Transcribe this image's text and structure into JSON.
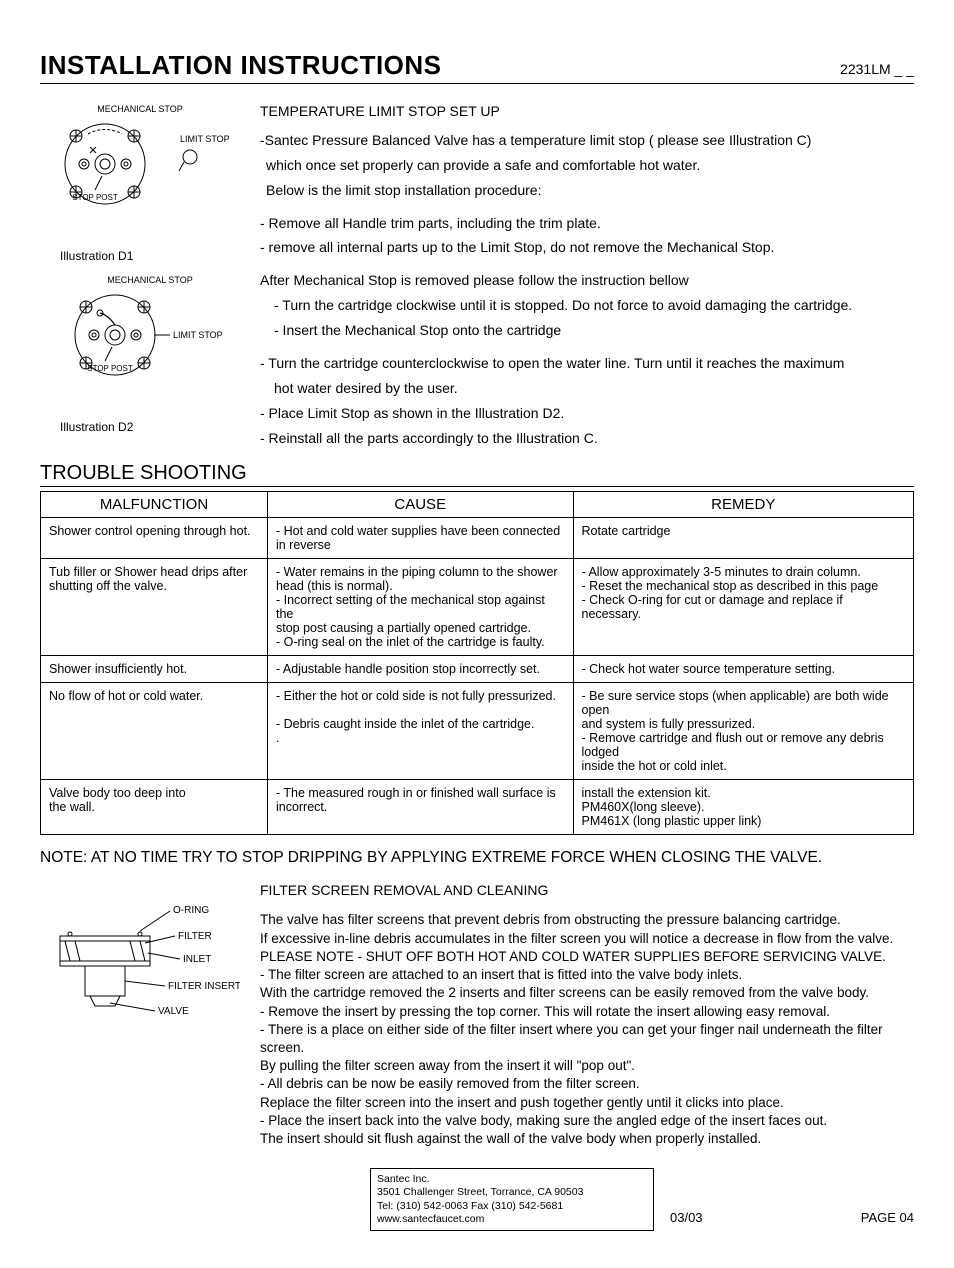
{
  "header": {
    "title": "INSTALLATION INSTRUCTIONS",
    "model": "2231LM _ _"
  },
  "illustrations": {
    "d1": {
      "mech_stop": "MECHANICAL STOP",
      "limit_stop": "LIMIT STOP",
      "stop_post": "STOP POST",
      "caption": "Illustration D1"
    },
    "d2": {
      "mech_stop": "MECHANICAL STOP",
      "limit_stop": "LIMIT STOP",
      "stop_post": "STOP POST",
      "caption": "Illustration D2"
    }
  },
  "temp_setup": {
    "heading": "TEMPERATURE LIMIT STOP SET UP",
    "p1a": "-Santec Pressure Balanced Valve has a temperature limit stop ( please see Illustration C)",
    "p1b": "which once set properly can provide a safe and comfortable hot water.",
    "p1c": "Below is the limit stop installation procedure:",
    "b1": "-  Remove all Handle trim parts, including the trim plate.",
    "b2": "-  remove all internal parts up to the Limit Stop, do not remove the Mechanical Stop.",
    "p2": "After Mechanical Stop is removed please follow the instruction bellow",
    "b3": "- Turn the cartridge clockwise until it is stopped. Do not force to avoid damaging the cartridge.",
    "b4": "- Insert the Mechanical Stop onto the cartridge",
    "b5a": "- Turn the cartridge counterclockwise to open the water line. Turn until it reaches the maximum",
    "b5b": "hot water desired by the user.",
    "b6": "- Place Limit Stop as shown in the Illustration D2.",
    "b7": "- Reinstall all the parts accordingly to the Illustration C."
  },
  "trouble": {
    "heading": "TROUBLE SHOOTING",
    "cols": [
      "MALFUNCTION",
      "CAUSE",
      "REMEDY"
    ],
    "rows": [
      {
        "m": "Shower control opening through hot.",
        "c": "- Hot and cold water supplies have  been connected\n   in reverse",
        "r": "Rotate cartridge"
      },
      {
        "m": "Tub filler or Shower head drips after shutting off the valve.",
        "c": "- Water remains in the piping column to the shower\n   head (this is normal).\n- Incorrect setting of the mechanical stop against the\n   stop post causing a partially opened cartridge.\n- O-ring seal on the inlet of the cartridge is faulty.",
        "r": "- Allow approximately 3-5 minutes to drain column.\n- Reset the mechanical stop as described in this page\n- Check O-ring for cut or damage and replace if necessary."
      },
      {
        "m": "Shower insufficiently hot.",
        "c": "- Adjustable handle position stop incorrectly set.",
        "r": "- Check hot water source temperature setting."
      },
      {
        "m": "No flow of hot or cold water.",
        "c": "- Either the hot or cold side is not fully pressurized.\n\n- Debris caught inside the inlet of the cartridge.\n.",
        "r": "- Be sure service stops (when applicable) are both wide open\n  and system is fully pressurized.\n- Remove cartridge and flush out or remove any debris lodged\n  inside the hot or cold inlet."
      },
      {
        "m": "Valve body too deep into\nthe wall.",
        "c": "- The measured rough in or finished wall surface is\n   incorrect.",
        "r": "install the extension kit.\nPM460X(long sleeve).\nPM461X (long plastic upper link)"
      }
    ]
  },
  "note": "NOTE:   AT NO TIME TRY TO STOP DRIPPING BY APPLYING EXTREME FORCE WHEN CLOSING THE VALVE.",
  "filter": {
    "labels": {
      "oring": "O-RING",
      "filter": "FILTER",
      "inlet": "INLET",
      "insert": "FILTER INSERT",
      "valve": "VALVE"
    },
    "heading": "FILTER SCREEN REMOVAL AND CLEANING",
    "p1": "The valve has filter screens that prevent debris from obstructing the pressure balancing cartridge.",
    "p2": "If excessive in-line debris accumulates in the filter screen you will notice a decrease in flow from the valve.",
    "p3": "PLEASE NOTE - SHUT OFF BOTH HOT AND COLD WATER SUPPLIES BEFORE SERVICING VALVE.",
    "b1": "- The filter screen are attached to an insert that is fitted into the  valve body inlets.",
    "b1b": "  With the cartridge removed the 2 inserts and filter screens can be easily removed from the valve body.",
    "b2": "- Remove the insert by pressing the top corner. This will rotate the insert allowing easy removal.",
    "b3": "- There is a place on either side of the filter insert where you can get your finger nail underneath the filter screen.",
    "b3b": "  By pulling the filter screen away from the insert it will \"pop out\".",
    "b4": "- All debris can be now be easily removed from the filter screen.",
    "b4b": "  Replace the filter screen into the insert and push together gently until it clicks into place.",
    "b5": "- Place the insert back into the valve body, making sure the angled edge of the insert faces out.",
    "b5b": "  The insert should sit flush against the wall of the valve body when properly installed."
  },
  "footer": {
    "company": "Santec Inc.",
    "addr": "3501 Challenger Street, Torrance, CA 90503",
    "tel": "Tel: (310) 542-0063  Fax (310) 542-5681",
    "web": "www.santecfaucet.com",
    "date": "03/03",
    "page": "PAGE 04"
  }
}
